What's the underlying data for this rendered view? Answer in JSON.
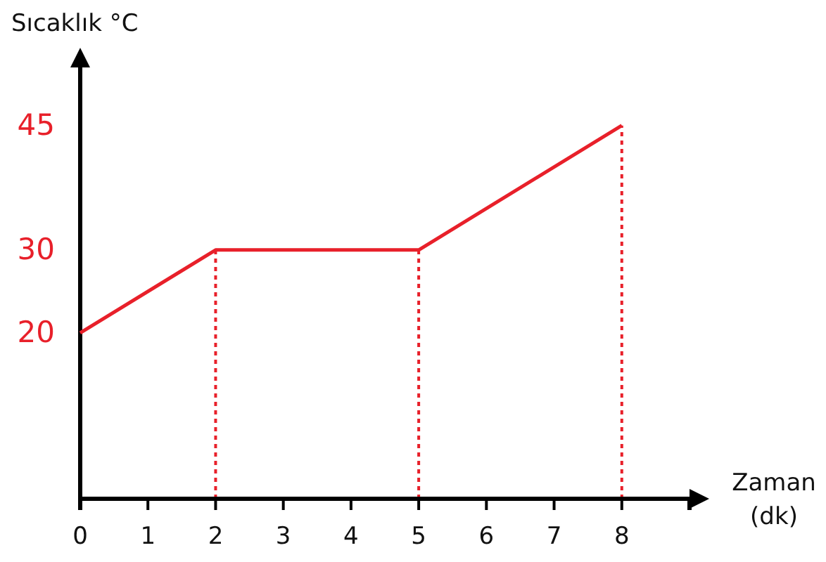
{
  "chart_data": {
    "type": "line",
    "xlabel": "Zaman\n(dk)",
    "ylabel": "Sıcaklık °C",
    "xlim": [
      0,
      9
    ],
    "ylim": [
      0,
      52
    ],
    "xticks": [
      {
        "value": 0,
        "label": "0"
      },
      1,
      2,
      3,
      4,
      5,
      6,
      7,
      8
    ],
    "yticks": [
      20,
      30,
      45
    ],
    "x": [
      0,
      2,
      5,
      8
    ],
    "series": [
      {
        "color": "#e8202a",
        "values": [
          20,
          30,
          30,
          45
        ]
      }
    ],
    "ref_lines": [
      {
        "axis": "x",
        "value": 2,
        "color": "#e8202a",
        "line_style": "dotted"
      },
      {
        "axis": "x",
        "value": 5,
        "color": "#e8202a",
        "line_style": "dotted"
      },
      {
        "axis": "x",
        "value": 8,
        "color": "#e8202a",
        "line_style": "dotted"
      }
    ],
    "grid": false,
    "marker": "none",
    "line_style": "solid"
  }
}
